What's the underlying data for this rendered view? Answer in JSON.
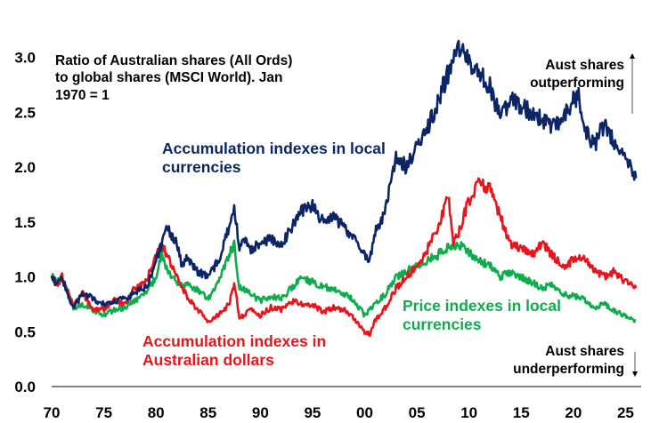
{
  "chart_data": {
    "type": "line",
    "title": "Ratio of Australian shares (All Ords) to global shares (MSCI World). Jan 1970 = 1",
    "xlabel": "",
    "ylabel": "",
    "xlim": [
      1970,
      2026.5
    ],
    "ylim": [
      0,
      3.2
    ],
    "x_tick_labels": [
      "70",
      "75",
      "80",
      "85",
      "90",
      "95",
      "00",
      "05",
      "10",
      "15",
      "20",
      "25"
    ],
    "x_tick_years": [
      1970,
      1975,
      1980,
      1985,
      1990,
      1995,
      2000,
      2005,
      2010,
      2015,
      2020,
      2025
    ],
    "y_ticks": [
      0.0,
      0.5,
      1.0,
      1.5,
      2.0,
      2.5,
      3.0
    ],
    "y_tick_labels": [
      "0.0",
      "0.5",
      "1.0",
      "1.5",
      "2.0",
      "2.5",
      "3.0"
    ],
    "series": [
      {
        "name": "Accumulation indexes in local currencies",
        "color": "#0b2566",
        "x": [
          1970,
          1970.5,
          1971,
          1971.5,
          1972,
          1972.5,
          1973,
          1974,
          1975,
          1976,
          1977,
          1978,
          1979,
          1979.5,
          1980,
          1980.5,
          1981,
          1981.5,
          1982,
          1982.5,
          1983,
          1984,
          1985,
          1986,
          1987,
          1987.5,
          1988,
          1988.5,
          1989,
          1990,
          1991,
          1992,
          1993,
          1994,
          1995,
          1996,
          1997,
          1998,
          1999,
          2000,
          2000.5,
          2001,
          2002,
          2003,
          2003.5,
          2004,
          2005,
          2006,
          2007,
          2008,
          2009,
          2009.5,
          2010,
          2011,
          2012,
          2013,
          2014,
          2015,
          2016,
          2017,
          2018,
          2019,
          2020,
          2020.5,
          2021,
          2022,
          2023,
          2024,
          2025,
          2025.5,
          2026
        ],
        "values": [
          1.0,
          0.93,
          1.0,
          0.85,
          0.72,
          0.78,
          0.85,
          0.8,
          0.75,
          0.78,
          0.8,
          0.85,
          0.9,
          1.0,
          1.15,
          1.28,
          1.45,
          1.38,
          1.3,
          1.1,
          1.18,
          1.05,
          1.0,
          1.15,
          1.45,
          1.62,
          1.25,
          1.35,
          1.25,
          1.3,
          1.35,
          1.28,
          1.45,
          1.6,
          1.65,
          1.5,
          1.55,
          1.45,
          1.35,
          1.2,
          1.15,
          1.4,
          1.6,
          2.1,
          2.05,
          2.0,
          2.2,
          2.35,
          2.6,
          2.85,
          3.05,
          3.1,
          2.95,
          2.85,
          2.75,
          2.45,
          2.6,
          2.55,
          2.5,
          2.45,
          2.35,
          2.45,
          2.6,
          2.65,
          2.35,
          2.2,
          2.4,
          2.2,
          2.1,
          2.0,
          1.9
        ]
      },
      {
        "name": "Price indexes in local currencies",
        "color": "#0ead4b",
        "x": [
          1970,
          1970.5,
          1971,
          1972,
          1973,
          1974,
          1975,
          1976,
          1977,
          1978,
          1979,
          1980,
          1980.5,
          1981,
          1982,
          1983,
          1984,
          1985,
          1986,
          1987,
          1987.5,
          1988,
          1989,
          1990,
          1991,
          1992,
          1993,
          1994,
          1995,
          1996,
          1997,
          1998,
          1999,
          2000,
          2001,
          2002,
          2003,
          2004,
          2005,
          2006,
          2007,
          2008,
          2009,
          2010,
          2011,
          2012,
          2013,
          2014,
          2015,
          2016,
          2017,
          2018,
          2019,
          2020,
          2021,
          2022,
          2023,
          2024,
          2025,
          2026
        ],
        "values": [
          1.0,
          0.95,
          1.0,
          0.72,
          0.75,
          0.7,
          0.65,
          0.7,
          0.72,
          0.78,
          0.85,
          1.0,
          1.2,
          1.08,
          0.95,
          0.92,
          0.88,
          0.8,
          0.95,
          1.2,
          1.3,
          0.9,
          0.85,
          0.78,
          0.82,
          0.8,
          0.9,
          1.0,
          0.95,
          0.92,
          0.88,
          0.85,
          0.78,
          0.65,
          0.75,
          0.85,
          1.0,
          1.05,
          1.1,
          1.15,
          1.2,
          1.28,
          1.3,
          1.22,
          1.15,
          1.1,
          1.0,
          1.05,
          1.0,
          0.95,
          0.9,
          0.92,
          0.85,
          0.82,
          0.8,
          0.72,
          0.75,
          0.68,
          0.65,
          0.6
        ]
      },
      {
        "name": "Accumulation indexes in Australian dollars",
        "color": "#e8151b",
        "x": [
          1970,
          1970.5,
          1971,
          1972,
          1973,
          1974,
          1975,
          1976,
          1977,
          1978,
          1979,
          1980,
          1980.5,
          1981,
          1982,
          1983,
          1984,
          1985,
          1986,
          1987,
          1987.5,
          1988,
          1989,
          1990,
          1991,
          1992,
          1993,
          1994,
          1995,
          1996,
          1997,
          1998,
          1999,
          2000,
          2000.5,
          2001,
          2002,
          2003,
          2004,
          2005,
          2006,
          2007,
          2008,
          2008.5,
          2009,
          2010,
          2011,
          2012,
          2013,
          2014,
          2015,
          2016,
          2017,
          2018,
          2019,
          2020,
          2021,
          2022,
          2023,
          2024,
          2025,
          2026
        ],
        "values": [
          1.0,
          0.93,
          1.0,
          0.75,
          0.85,
          0.7,
          0.7,
          0.8,
          0.75,
          0.9,
          0.95,
          1.2,
          1.32,
          1.2,
          1.0,
          0.82,
          0.7,
          0.6,
          0.65,
          0.75,
          0.95,
          0.62,
          0.7,
          0.65,
          0.72,
          0.7,
          0.78,
          0.75,
          0.75,
          0.68,
          0.72,
          0.7,
          0.62,
          0.5,
          0.48,
          0.6,
          0.72,
          0.9,
          1.0,
          1.1,
          1.25,
          1.45,
          1.75,
          1.3,
          1.4,
          1.7,
          1.85,
          1.8,
          1.55,
          1.3,
          1.25,
          1.2,
          1.3,
          1.2,
          1.1,
          1.15,
          1.2,
          1.05,
          1.0,
          1.05,
          0.95,
          0.9
        ]
      }
    ],
    "annotations": {
      "title_box": "Ratio of Australian shares (All Ords) to global shares (MSCI World). Jan 1970 = 1",
      "acc_local": "Accumulation indexes in local currencies",
      "price_local": "Price indexes in local currencies",
      "acc_aud": "Accumulation indexes in Australian dollars",
      "outperforming": "Aust shares outperforming",
      "underperforming": "Aust shares underperforming"
    }
  }
}
